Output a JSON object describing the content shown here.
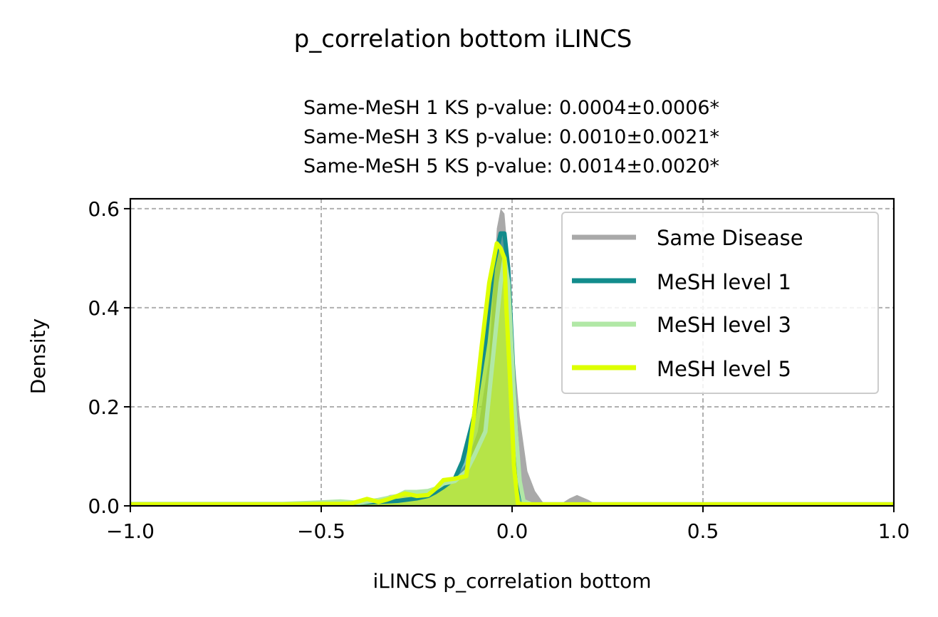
{
  "chart_data": {
    "type": "area",
    "suptitle": "p_correlation bottom iLINCS",
    "title_lines": [
      "Same-MeSH 1 KS p-value: 0.0004±0.0006*",
      "Same-MeSH 3 KS p-value: 0.0010±0.0021*",
      "Same-MeSH 5 KS p-value: 0.0014±0.0020*"
    ],
    "xlabel": "iLINCS p_correlation bottom",
    "ylabel": "Density",
    "xlim": [
      -1.0,
      1.0
    ],
    "ylim": [
      0.0,
      0.62
    ],
    "xticks": [
      -1.0,
      -0.5,
      0.0,
      0.5,
      1.0
    ],
    "xtick_labels": [
      "−1.0",
      "−0.5",
      "0.0",
      "0.5",
      "1.0"
    ],
    "yticks": [
      0.0,
      0.2,
      0.4,
      0.6
    ],
    "ytick_labels": [
      "0.0",
      "0.2",
      "0.4",
      "0.6"
    ],
    "grid": true,
    "legend_position": "upper right",
    "series": [
      {
        "name": "Same Disease",
        "color": "#a9a9a9",
        "x": [
          -1.0,
          -0.6,
          -0.45,
          -0.4,
          -0.35,
          -0.32,
          -0.28,
          -0.24,
          -0.2,
          -0.16,
          -0.12,
          -0.09,
          -0.06,
          -0.04,
          -0.03,
          -0.02,
          -0.01,
          0.0,
          0.02,
          0.04,
          0.06,
          0.08,
          0.1,
          0.13,
          0.15,
          0.17,
          0.2,
          0.22,
          0.25,
          1.0
        ],
        "y": [
          0.0,
          0.0,
          0.003,
          0.005,
          0.012,
          0.022,
          0.025,
          0.02,
          0.028,
          0.045,
          0.085,
          0.15,
          0.3,
          0.56,
          0.6,
          0.59,
          0.5,
          0.35,
          0.18,
          0.07,
          0.03,
          0.008,
          0.002,
          0.005,
          0.015,
          0.022,
          0.012,
          0.003,
          0.0,
          0.0
        ]
      },
      {
        "name": "MeSH level 1",
        "color": "#128c8c",
        "x": [
          -1.0,
          -0.6,
          -0.5,
          -0.45,
          -0.4,
          -0.35,
          -0.3,
          -0.28,
          -0.25,
          -0.22,
          -0.2,
          -0.18,
          -0.15,
          -0.13,
          -0.1,
          -0.07,
          -0.05,
          -0.03,
          -0.02,
          -0.01,
          0.0,
          0.01,
          0.02,
          0.03,
          0.05,
          1.0
        ],
        "y": [
          0.003,
          0.003,
          0.005,
          0.007,
          0.006,
          0.008,
          0.01,
          0.012,
          0.015,
          0.02,
          0.028,
          0.038,
          0.055,
          0.09,
          0.18,
          0.33,
          0.48,
          0.55,
          0.55,
          0.48,
          0.32,
          0.15,
          0.04,
          0.005,
          0.003,
          0.003
        ]
      },
      {
        "name": "MeSH level 3",
        "color": "#b1e8a6",
        "x": [
          -1.0,
          -0.6,
          -0.5,
          -0.45,
          -0.4,
          -0.35,
          -0.3,
          -0.28,
          -0.25,
          -0.22,
          -0.2,
          -0.18,
          -0.15,
          -0.12,
          -0.1,
          -0.07,
          -0.05,
          -0.03,
          -0.02,
          -0.01,
          0.0,
          0.01,
          0.02,
          0.03,
          0.05,
          1.0
        ],
        "y": [
          0.004,
          0.004,
          0.007,
          0.009,
          0.006,
          0.012,
          0.02,
          0.028,
          0.028,
          0.03,
          0.035,
          0.045,
          0.05,
          0.07,
          0.1,
          0.15,
          0.3,
          0.45,
          0.5,
          0.45,
          0.3,
          0.15,
          0.05,
          0.01,
          0.003,
          0.003
        ]
      },
      {
        "name": "MeSH level 5",
        "color": "#ddff00",
        "x": [
          -1.0,
          -0.6,
          -0.5,
          -0.45,
          -0.42,
          -0.38,
          -0.35,
          -0.33,
          -0.3,
          -0.28,
          -0.25,
          -0.22,
          -0.2,
          -0.18,
          -0.15,
          -0.12,
          -0.1,
          -0.08,
          -0.06,
          -0.04,
          -0.03,
          -0.02,
          -0.015,
          -0.005,
          0.005,
          0.015,
          0.03,
          1.0
        ],
        "y": [
          0.003,
          0.003,
          0.004,
          0.004,
          0.005,
          0.014,
          0.008,
          0.012,
          0.02,
          0.025,
          0.02,
          0.022,
          0.035,
          0.052,
          0.055,
          0.06,
          0.18,
          0.32,
          0.45,
          0.53,
          0.52,
          0.5,
          0.4,
          0.25,
          0.08,
          0.005,
          0.003,
          0.003
        ]
      }
    ]
  }
}
